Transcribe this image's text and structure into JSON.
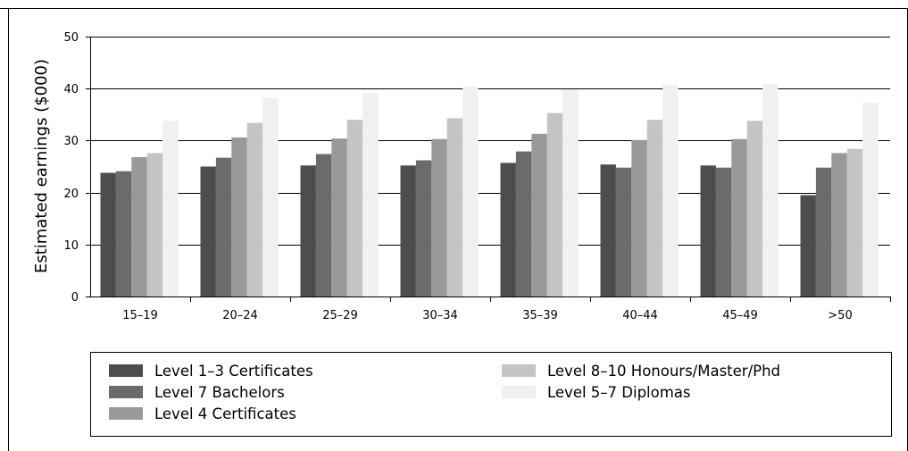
{
  "chart_data": {
    "type": "bar",
    "title": "",
    "xlabel": "",
    "ylabel": "Estimated earnings ($000)",
    "ylim": [
      0,
      50
    ],
    "yticks": [
      0,
      10,
      20,
      30,
      40,
      50
    ],
    "grid": true,
    "legend_position": "bottom",
    "categories": [
      "15–19",
      "20–24",
      "25–29",
      "30–34",
      "35–39",
      "40–44",
      "45–49",
      ">50"
    ],
    "series": [
      {
        "name": "Level 1–3 Certificates",
        "color": "#4d4d4d",
        "values": [
          23.8,
          25.0,
          25.2,
          25.2,
          25.7,
          25.4,
          25.2,
          19.5
        ]
      },
      {
        "name": "Level 7 Bachelors",
        "color": "#6b6b6b",
        "values": [
          24.1,
          26.7,
          27.4,
          26.2,
          27.9,
          24.8,
          24.8,
          24.8
        ]
      },
      {
        "name": "Level 4 Certificates",
        "color": "#999999",
        "values": [
          26.8,
          30.6,
          30.4,
          30.3,
          31.3,
          30.1,
          30.3,
          27.6
        ]
      },
      {
        "name": "Level 8–10 Honours/Master/Phd",
        "color": "#c4c4c4",
        "values": [
          27.6,
          33.4,
          34.0,
          34.3,
          35.3,
          34.0,
          33.8,
          28.4
        ]
      },
      {
        "name": "Level 5–7 Diplomas",
        "color": "#f0f0f0",
        "values": [
          33.8,
          38.2,
          39.1,
          40.4,
          39.8,
          40.7,
          40.9,
          37.3
        ]
      }
    ]
  }
}
